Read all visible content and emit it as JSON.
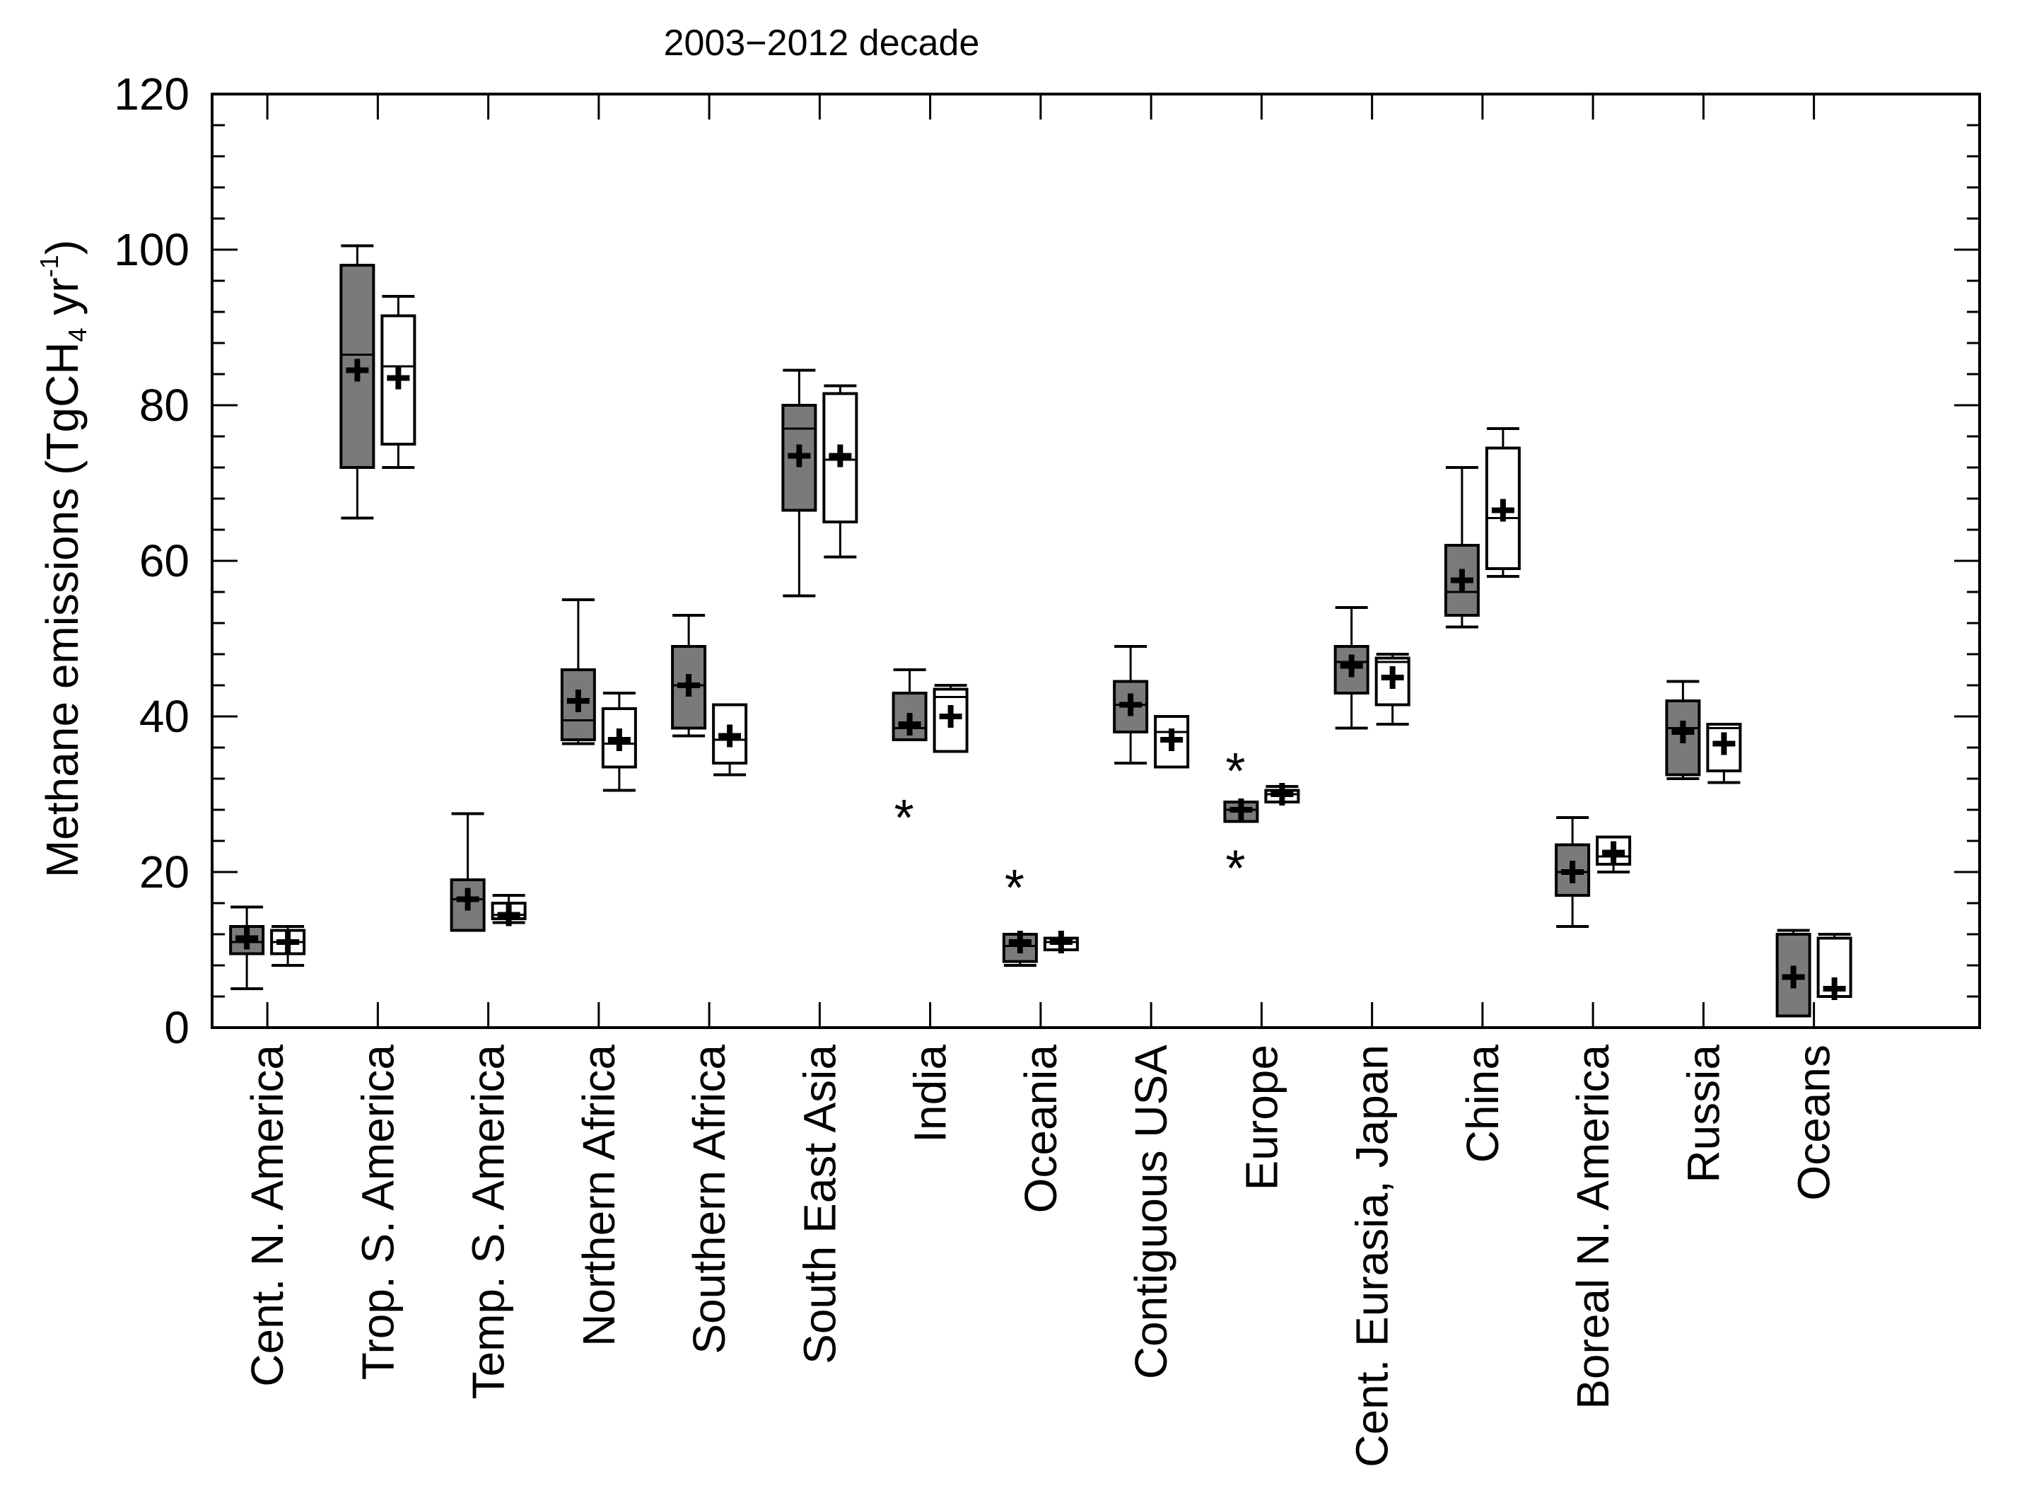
{
  "chart_data": {
    "type": "box",
    "title": "2003−2012 decade",
    "ylabel": "Methane emissions (TgCH₄ yr⁻¹)",
    "ylabel_parts": {
      "main": "Methane emissions (TgCH",
      "sub": "4",
      "mid": " yr",
      "sup": "-1",
      "end": ")"
    },
    "ylim": [
      0,
      120
    ],
    "yticks": [
      0,
      20,
      40,
      60,
      80,
      100,
      120
    ],
    "ytick_labels": [
      "0",
      "20",
      "40",
      "60",
      "80",
      "100",
      "120"
    ],
    "grid": false,
    "colors": {
      "filled": "#7a7a7a",
      "open": "#ffffff",
      "stroke": "#000000"
    },
    "categories": [
      "Cent. N. America",
      "Trop. S. America",
      "Temp. S. America",
      "Northern Africa",
      "Southern Africa",
      "South East Asia",
      "India",
      "Oceania",
      "Contiguous USA",
      "Europe",
      "Cent. Eurasia, Japan",
      "China",
      "Boreal N. America",
      "Russia",
      "Oceans"
    ],
    "series": [
      {
        "style": "filled",
        "boxes": [
          {
            "min": 5,
            "q1": 9.5,
            "median": 11,
            "q3": 13,
            "max": 15.5,
            "mean": 11.5,
            "outliers": []
          },
          {
            "min": 65.5,
            "q1": 72,
            "median": 86.5,
            "q3": 98,
            "max": 100.5,
            "mean": 84.5,
            "outliers": []
          },
          {
            "min": 12.5,
            "q1": 12.5,
            "median": 16.5,
            "q3": 19,
            "max": 27.5,
            "mean": 16.5,
            "outliers": []
          },
          {
            "min": 36.5,
            "q1": 37,
            "median": 39.5,
            "q3": 46,
            "max": 55,
            "mean": 42,
            "outliers": []
          },
          {
            "min": 37.5,
            "q1": 38.5,
            "median": 44,
            "q3": 49,
            "max": 53,
            "mean": 44,
            "outliers": []
          },
          {
            "min": 55.5,
            "q1": 66.5,
            "median": 77,
            "q3": 80,
            "max": 84.5,
            "mean": 73.5,
            "outliers": []
          },
          {
            "min": 37,
            "q1": 37,
            "median": 38.5,
            "q3": 43,
            "max": 46,
            "mean": 39,
            "outliers": [
              28
            ]
          },
          {
            "min": 8,
            "q1": 8.5,
            "median": 10.5,
            "q3": 12,
            "max": 12,
            "mean": 11,
            "outliers": [
              19
            ]
          },
          {
            "min": 34,
            "q1": 38,
            "median": 41.5,
            "q3": 44.5,
            "max": 49,
            "mean": 41.5,
            "outliers": []
          },
          {
            "min": 26.5,
            "q1": 26.5,
            "median": 28,
            "q3": 29,
            "max": 29,
            "mean": 28,
            "outliers": [
              34,
              21.5
            ]
          },
          {
            "min": 38.5,
            "q1": 43,
            "median": 47,
            "q3": 49,
            "max": 54,
            "mean": 46.5,
            "outliers": []
          },
          {
            "min": 51.5,
            "q1": 53,
            "median": 56,
            "q3": 62,
            "max": 72,
            "mean": 57.5,
            "outliers": []
          },
          {
            "min": 13,
            "q1": 17,
            "median": 20,
            "q3": 23.5,
            "max": 27,
            "mean": 20,
            "outliers": []
          },
          {
            "min": 32,
            "q1": 32.5,
            "median": 38.5,
            "q3": 42,
            "max": 44.5,
            "mean": 38,
            "outliers": []
          },
          {
            "min": 1.5,
            "q1": 1.5,
            "median": 12,
            "q3": 12,
            "max": 12.5,
            "mean": 6.5,
            "outliers": []
          }
        ]
      },
      {
        "style": "open",
        "boxes": [
          {
            "min": 8,
            "q1": 9.5,
            "median": 11,
            "q3": 12.5,
            "max": 13,
            "mean": 11,
            "outliers": []
          },
          {
            "min": 72,
            "q1": 75,
            "median": 85,
            "q3": 91.5,
            "max": 94,
            "mean": 83.5,
            "outliers": []
          },
          {
            "min": 13.5,
            "q1": 14,
            "median": 14.5,
            "q3": 16,
            "max": 17,
            "mean": 14.5,
            "outliers": []
          },
          {
            "min": 30.5,
            "q1": 33.5,
            "median": 36.5,
            "q3": 41,
            "max": 43,
            "mean": 37,
            "outliers": []
          },
          {
            "min": 32.5,
            "q1": 34,
            "median": 37,
            "q3": 41.5,
            "max": 41.5,
            "mean": 37.5,
            "outliers": []
          },
          {
            "min": 60.5,
            "q1": 65,
            "median": 73,
            "q3": 81.5,
            "max": 82.5,
            "mean": 73.5,
            "outliers": []
          },
          {
            "min": 35.5,
            "q1": 35.5,
            "median": 42.5,
            "q3": 43.5,
            "max": 44,
            "mean": 40,
            "outliers": []
          },
          {
            "min": 10,
            "q1": 10,
            "median": 11,
            "q3": 11.5,
            "max": 11.5,
            "mean": 11,
            "outliers": []
          },
          {
            "min": 33.5,
            "q1": 33.5,
            "median": 38,
            "q3": 40,
            "max": 40,
            "mean": 37,
            "outliers": []
          },
          {
            "min": 29,
            "q1": 29,
            "median": 30,
            "q3": 30.5,
            "max": 31,
            "mean": 30,
            "outliers": []
          },
          {
            "min": 39,
            "q1": 41.5,
            "median": 47,
            "q3": 47.5,
            "max": 48,
            "mean": 45,
            "outliers": []
          },
          {
            "min": 58,
            "q1": 59,
            "median": 65.5,
            "q3": 74.5,
            "max": 77,
            "mean": 66.5,
            "outliers": []
          },
          {
            "min": 20,
            "q1": 21,
            "median": 22,
            "q3": 24.5,
            "max": 24.5,
            "mean": 22.5,
            "outliers": []
          },
          {
            "min": 31.5,
            "q1": 33,
            "median": 38.5,
            "q3": 39,
            "max": 39,
            "mean": 36.5,
            "outliers": []
          },
          {
            "min": 4,
            "q1": 4,
            "median": 4,
            "q3": 11.5,
            "max": 12,
            "mean": 5,
            "outliers": []
          }
        ]
      }
    ]
  }
}
